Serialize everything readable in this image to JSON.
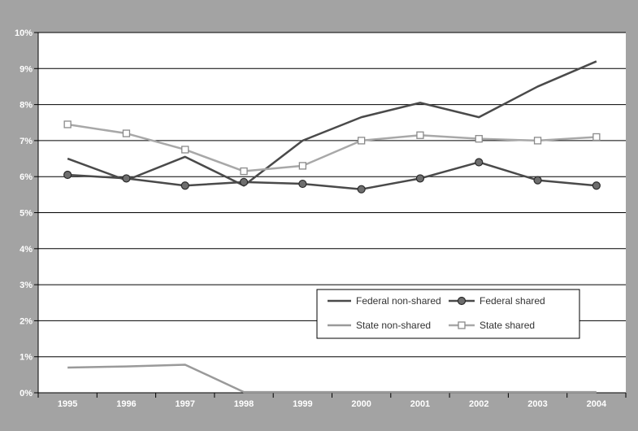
{
  "chart_data": {
    "type": "line",
    "title": "",
    "xlabel": "",
    "ylabel": "",
    "x": [
      "1995",
      "1996",
      "1997",
      "1998",
      "1999",
      "2000",
      "2001",
      "2002",
      "2003",
      "2004"
    ],
    "ylim": [
      0,
      10
    ],
    "y_ticks": [
      "0%",
      "1%",
      "2%",
      "3%",
      "4%",
      "5%",
      "6%",
      "7%",
      "8%",
      "9%",
      "10%"
    ],
    "y_tick_values": [
      0,
      1,
      2,
      3,
      4,
      5,
      6,
      7,
      8,
      9,
      10
    ],
    "grid": true,
    "legend_position": "lower-right",
    "series": [
      {
        "name": "Federal non-shared",
        "color": "#4a4a4a",
        "marker": "none",
        "values": [
          6.5,
          5.9,
          6.55,
          5.75,
          7.0,
          7.65,
          8.05,
          7.65,
          8.5,
          9.2
        ]
      },
      {
        "name": "Federal shared",
        "color": "#4a4a4a",
        "marker": "circle",
        "values": [
          6.05,
          5.95,
          5.75,
          5.85,
          5.8,
          5.65,
          5.95,
          6.4,
          5.9,
          5.75
        ]
      },
      {
        "name": "State non-shared",
        "color": "#9a9a9a",
        "marker": "none",
        "values": [
          0.7,
          0.73,
          0.78,
          0.02,
          0.02,
          0.02,
          0.02,
          0.02,
          0.02,
          0.02
        ]
      },
      {
        "name": "State shared",
        "color": "#a8a8a8",
        "marker": "square",
        "values": [
          7.45,
          7.2,
          6.75,
          6.15,
          6.3,
          7.0,
          7.15,
          7.05,
          7.0,
          7.1
        ]
      }
    ]
  },
  "colors": {
    "frame": "#a3a3a3",
    "plot_background": "#ffffff",
    "gridline": "#000000"
  }
}
